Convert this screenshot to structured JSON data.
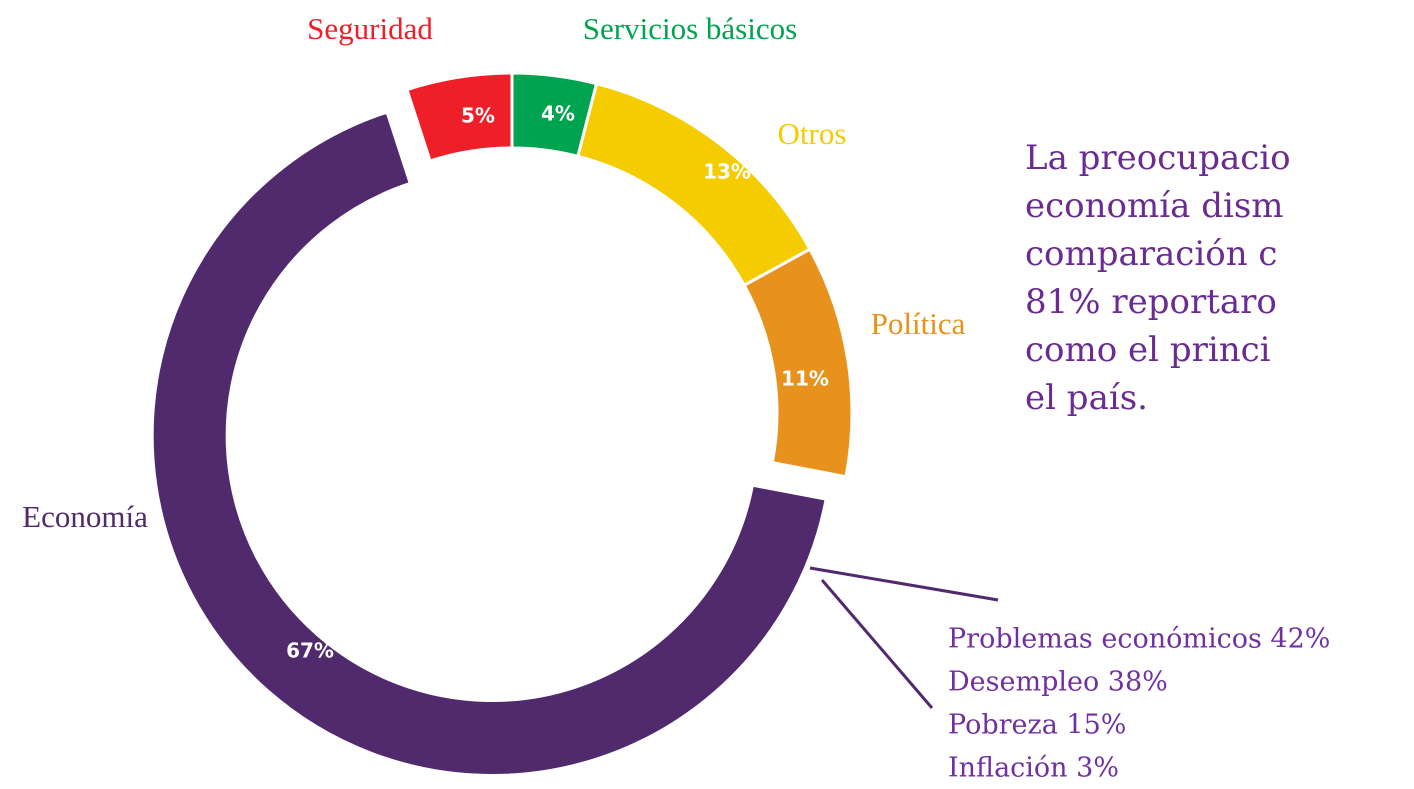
{
  "chart_data": {
    "type": "donut",
    "categories": [
      "Servicios básicos",
      "Otros",
      "Política",
      "Economía",
      "Seguridad"
    ],
    "values": [
      4,
      13,
      11,
      67,
      5
    ],
    "value_labels": [
      "4%",
      "13%",
      "11%",
      "67%",
      "5%"
    ],
    "colors": [
      "#00a34f",
      "#f5cc00",
      "#e8921e",
      "#512a6e",
      "#ef1f2a"
    ],
    "exploded": "Economía",
    "annotation": [
      "La preocupacio",
      "economía dism",
      "comparación c",
      "81% reportaro",
      "como el princi",
      "el país."
    ],
    "breakdown": [
      "Problemas económicos 42%",
      "Desempleo 38%",
      "Pobreza 15%",
      "Inflación 3%"
    ]
  }
}
